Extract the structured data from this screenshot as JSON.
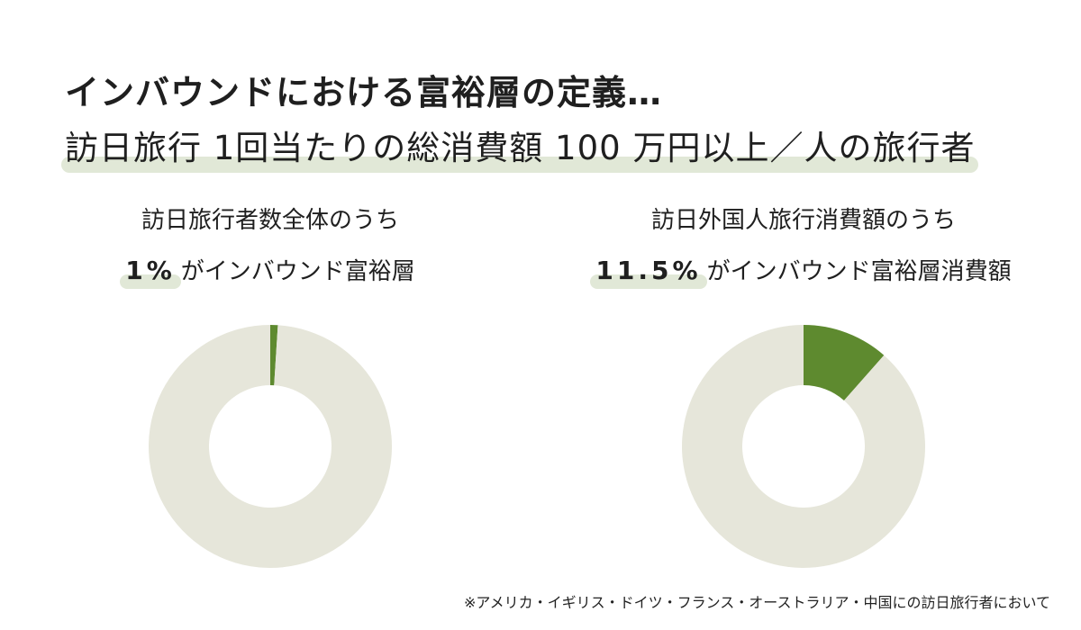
{
  "heading": "インバウンドにおける富裕層の定義…",
  "definition": "訪日旅行 1回当たりの総消費額 100 万円以上／人の旅行者",
  "footnote": "※アメリカ・イギリス・ドイツ・フランス・オーストラリア・中国にの訪日旅行者において",
  "colors": {
    "accent": "#5e8a2f",
    "remainder": "#e6e6da",
    "highlight": "#e1e8d7"
  },
  "chart_data": [
    {
      "type": "pie",
      "title": "訪日旅行者数全体のうち",
      "stat_value": "1%",
      "stat_label": "がインバウンド富裕層",
      "slices": [
        {
          "label": "インバウンド富裕層",
          "value": 1,
          "color": "#5e8a2f"
        },
        {
          "label": "",
          "value": 99,
          "color": "#e6e6da"
        }
      ]
    },
    {
      "type": "pie",
      "title": "訪日外国人旅行消費額のうち",
      "stat_value": "11.5%",
      "stat_label": "がインバウンド富裕層消費額",
      "slices": [
        {
          "label": "インバウンド富裕層消費額",
          "value": 11.5,
          "color": "#5e8a2f"
        },
        {
          "label": "",
          "value": 88.5,
          "color": "#e6e6da"
        }
      ]
    }
  ]
}
